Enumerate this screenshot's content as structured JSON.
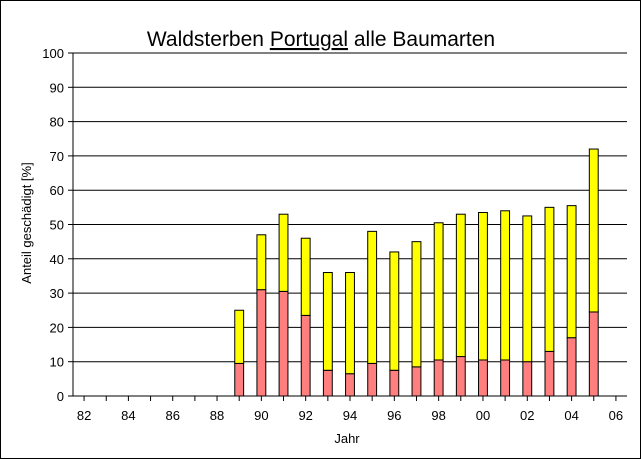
{
  "chart_data": {
    "type": "bar",
    "stacked": true,
    "title": {
      "before": "Waldsterben ",
      "underlined": "Portugal",
      "after": " alle Baumarten"
    },
    "xlabel": "Jahr",
    "ylabel": "Anteil geschädigt [%]",
    "ylim": [
      0,
      100
    ],
    "yticks": [
      0,
      10,
      20,
      30,
      40,
      50,
      60,
      70,
      80,
      90,
      100
    ],
    "x_range": [
      1981.5,
      2006.5
    ],
    "x_tick_years": [
      1982,
      1984,
      1986,
      1988,
      1990,
      1992,
      1994,
      1996,
      1998,
      2000,
      2002,
      2004,
      2006
    ],
    "x_tick_labels": [
      "82",
      "84",
      "86",
      "88",
      "90",
      "92",
      "94",
      "96",
      "98",
      "00",
      "02",
      "04",
      "06"
    ],
    "grid": true,
    "legend": "none",
    "years": [
      1989,
      1990,
      1991,
      1992,
      1993,
      1994,
      1995,
      1996,
      1997,
      1998,
      1999,
      2000,
      2001,
      2002,
      2003,
      2004,
      2005
    ],
    "series": [
      {
        "color": "#ff7f7f",
        "values": [
          9.5,
          31,
          30.5,
          23.5,
          7.5,
          6.5,
          9.5,
          7.5,
          8.5,
          10.5,
          11.5,
          10.5,
          10.5,
          10,
          13,
          17,
          24.5
        ]
      },
      {
        "color": "#ffff00",
        "values": [
          15.5,
          16,
          22.5,
          22.5,
          28.5,
          29.5,
          38.5,
          34.5,
          36.5,
          40,
          41.5,
          43,
          43.5,
          42.5,
          42,
          38.5,
          47.5
        ]
      }
    ]
  }
}
